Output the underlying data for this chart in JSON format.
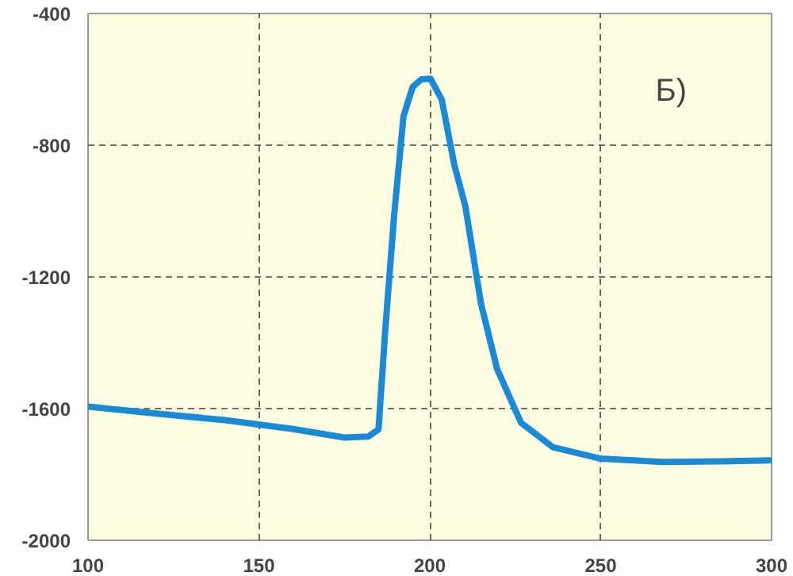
{
  "chart_data": {
    "type": "line",
    "annotations": [
      "Б)"
    ],
    "x": [
      100,
      120,
      140,
      160,
      175,
      182,
      185,
      187,
      189.6,
      192.3,
      195,
      197.5,
      200.2,
      203.5,
      207.2,
      210.4,
      215,
      219.7,
      226.7,
      236,
      250,
      268,
      285,
      300
    ],
    "series": [
      {
        "color": "#1b8ad6",
        "values": [
          -1594,
          -1615,
          -1635,
          -1662,
          -1688,
          -1685,
          -1663,
          -1356,
          -1009,
          -712,
          -623,
          -600,
          -598,
          -662,
          -861,
          -985,
          -1282,
          -1480,
          -1643,
          -1717,
          -1752,
          -1762,
          -1760,
          -1757
        ]
      }
    ],
    "xlim": [
      100,
      300
    ],
    "ylim": [
      -2000,
      -400
    ],
    "xticks": [
      100,
      150,
      200,
      250,
      300
    ],
    "yticks": [
      -2000,
      -1600,
      -1200,
      -800,
      -400
    ],
    "grid": true,
    "line_style": "solid",
    "marker": "none"
  }
}
